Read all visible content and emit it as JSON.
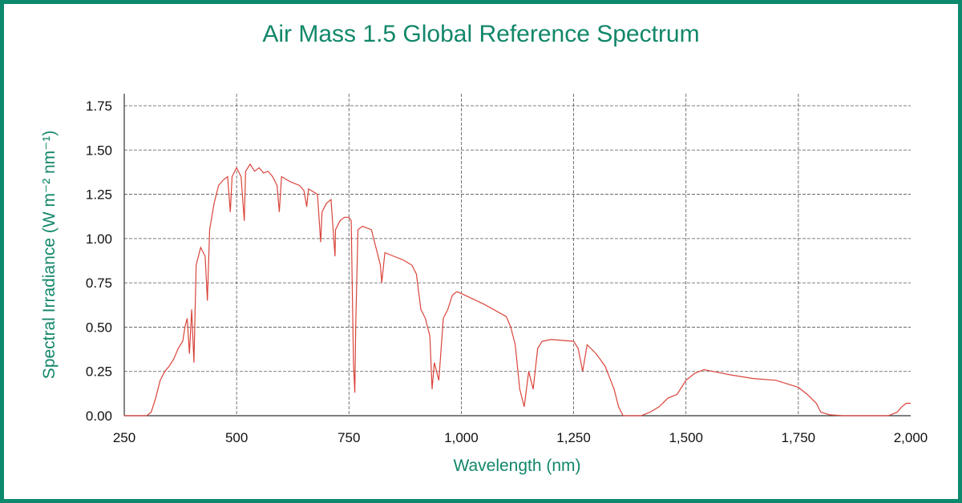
{
  "chart_data": {
    "type": "line",
    "title": "Air Mass 1.5 Global Reference Spectrum",
    "xlabel": "Wavelength (nm)",
    "ylabel": "Spectral Irradiance (W m⁻² nm⁻¹)",
    "xlim": [
      250,
      2000
    ],
    "ylim": [
      0,
      1.75
    ],
    "xticks": [
      "250",
      "500",
      "750",
      "1,000",
      "1,250",
      "1,500",
      "1,750",
      "2,000"
    ],
    "yticks": [
      "0.00",
      "0.25",
      "0.50",
      "0.75",
      "1.00",
      "1.25",
      "1.50",
      "1.75"
    ],
    "grid": true,
    "line_color": "#d9443a",
    "frame_color": "#0d8a6e",
    "x": [
      250,
      280,
      300,
      310,
      320,
      330,
      340,
      350,
      360,
      370,
      380,
      385,
      390,
      395,
      400,
      405,
      410,
      420,
      430,
      435,
      440,
      450,
      460,
      470,
      480,
      486,
      490,
      500,
      510,
      517,
      520,
      530,
      540,
      550,
      560,
      570,
      580,
      590,
      595,
      600,
      620,
      640,
      650,
      656,
      660,
      680,
      687,
      690,
      700,
      710,
      719,
      720,
      730,
      740,
      750,
      755,
      760,
      763,
      765,
      770,
      780,
      800,
      810,
      820,
      823,
      830,
      850,
      870,
      890,
      900,
      910,
      920,
      930,
      935,
      940,
      950,
      960,
      970,
      980,
      990,
      1000,
      1050,
      1100,
      1110,
      1120,
      1130,
      1140,
      1150,
      1160,
      1170,
      1180,
      1200,
      1250,
      1260,
      1270,
      1280,
      1300,
      1320,
      1340,
      1350,
      1360,
      1400,
      1420,
      1440,
      1460,
      1480,
      1500,
      1520,
      1540,
      1560,
      1600,
      1650,
      1700,
      1750,
      1770,
      1790,
      1800,
      1820,
      1850,
      1950,
      1970,
      1980,
      1990,
      2000
    ],
    "y": [
      0,
      0,
      0,
      0.02,
      0.1,
      0.2,
      0.25,
      0.28,
      0.32,
      0.38,
      0.42,
      0.5,
      0.55,
      0.35,
      0.6,
      0.3,
      0.85,
      0.95,
      0.9,
      0.65,
      1.05,
      1.2,
      1.3,
      1.33,
      1.35,
      1.15,
      1.35,
      1.4,
      1.35,
      1.1,
      1.38,
      1.42,
      1.38,
      1.4,
      1.37,
      1.38,
      1.35,
      1.3,
      1.15,
      1.35,
      1.32,
      1.3,
      1.27,
      1.18,
      1.28,
      1.25,
      0.98,
      1.15,
      1.2,
      1.22,
      0.9,
      1.05,
      1.1,
      1.12,
      1.12,
      1.1,
      0.3,
      0.13,
      0.5,
      1.05,
      1.07,
      1.05,
      0.95,
      0.85,
      0.75,
      0.92,
      0.9,
      0.88,
      0.85,
      0.8,
      0.6,
      0.55,
      0.45,
      0.15,
      0.3,
      0.2,
      0.55,
      0.6,
      0.68,
      0.7,
      0.69,
      0.63,
      0.56,
      0.5,
      0.4,
      0.15,
      0.05,
      0.25,
      0.15,
      0.38,
      0.42,
      0.43,
      0.42,
      0.38,
      0.25,
      0.4,
      0.35,
      0.28,
      0.15,
      0.05,
      0,
      0,
      0.02,
      0.05,
      0.1,
      0.12,
      0.2,
      0.24,
      0.26,
      0.25,
      0.23,
      0.21,
      0.2,
      0.16,
      0.12,
      0.07,
      0.02,
      0.005,
      0,
      0,
      0.02,
      0.05,
      0.07,
      0.07
    ]
  }
}
